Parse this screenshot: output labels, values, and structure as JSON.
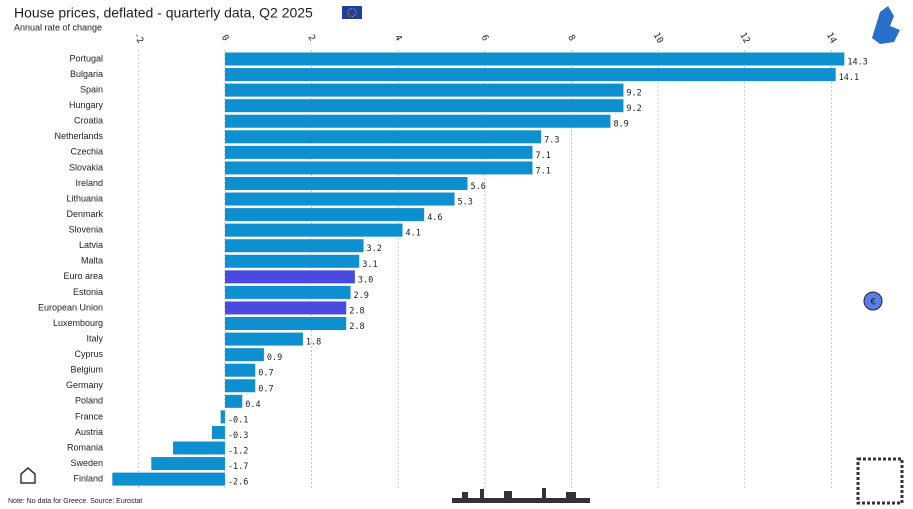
{
  "chart_data": {
    "type": "bar",
    "orientation": "horizontal",
    "title": "House prices, deflated - quarterly data, Q2 2025",
    "subtitle": "Annual rate of change",
    "note": "Note: No data for Greece. Source: Eurostat",
    "categories": [
      "Portugal",
      "Bulgaria",
      "Spain",
      "Hungary",
      "Croatia",
      "Netherlands",
      "Czechia",
      "Slovakia",
      "Ireland",
      "Lithuania",
      "Denmark",
      "Slovenia",
      "Latvia",
      "Malta",
      "Euro area",
      "Estonia",
      "European Union",
      "Luxembourg",
      "Italy",
      "Cyprus",
      "Belgium",
      "Germany",
      "Poland",
      "France",
      "Austria",
      "Romania",
      "Sweden",
      "Finland"
    ],
    "values": [
      14.3,
      14.1,
      9.2,
      9.2,
      8.9,
      7.3,
      7.1,
      7.1,
      5.6,
      5.3,
      4.6,
      4.1,
      3.2,
      3.1,
      3.0,
      2.9,
      2.8,
      2.8,
      1.8,
      0.9,
      0.7,
      0.7,
      0.4,
      -0.1,
      -0.3,
      -1.2,
      -1.7,
      -2.6
    ],
    "value_labels": [
      "14.3",
      "14.1",
      "9.2",
      "9.2",
      "8.9",
      "7.3",
      "7.1",
      "7.1",
      "5.6",
      "5.3",
      "4.6",
      "4.1",
      "3.2",
      "3.1",
      "3.0",
      "2.9",
      "2.8",
      "2.8",
      "1.8",
      "0.9",
      "0.7",
      "0.7",
      "0.4",
      "-0.1",
      "-0.3",
      "-1.2",
      "-1.7",
      "-2.6"
    ],
    "colors": [
      "#0e8fd0",
      "#0e8fd0",
      "#0e8fd0",
      "#0e8fd0",
      "#0e8fd0",
      "#0e8fd0",
      "#0e8fd0",
      "#0e8fd0",
      "#0e8fd0",
      "#0e8fd0",
      "#0e8fd0",
      "#0e8fd0",
      "#0e8fd0",
      "#0e8fd0",
      "#4a4ae0",
      "#0e8fd0",
      "#4a4ae0",
      "#0e8fd0",
      "#0e8fd0",
      "#0e8fd0",
      "#0e8fd0",
      "#0e8fd0",
      "#0e8fd0",
      "#0e8fd0",
      "#0e8fd0",
      "#0e8fd0",
      "#0e8fd0",
      "#0e8fd0"
    ],
    "xlim": [
      -2.7,
      14.5
    ],
    "xticks": [
      -2,
      0,
      2,
      4,
      6,
      8,
      10,
      12,
      14
    ],
    "grid": true
  }
}
